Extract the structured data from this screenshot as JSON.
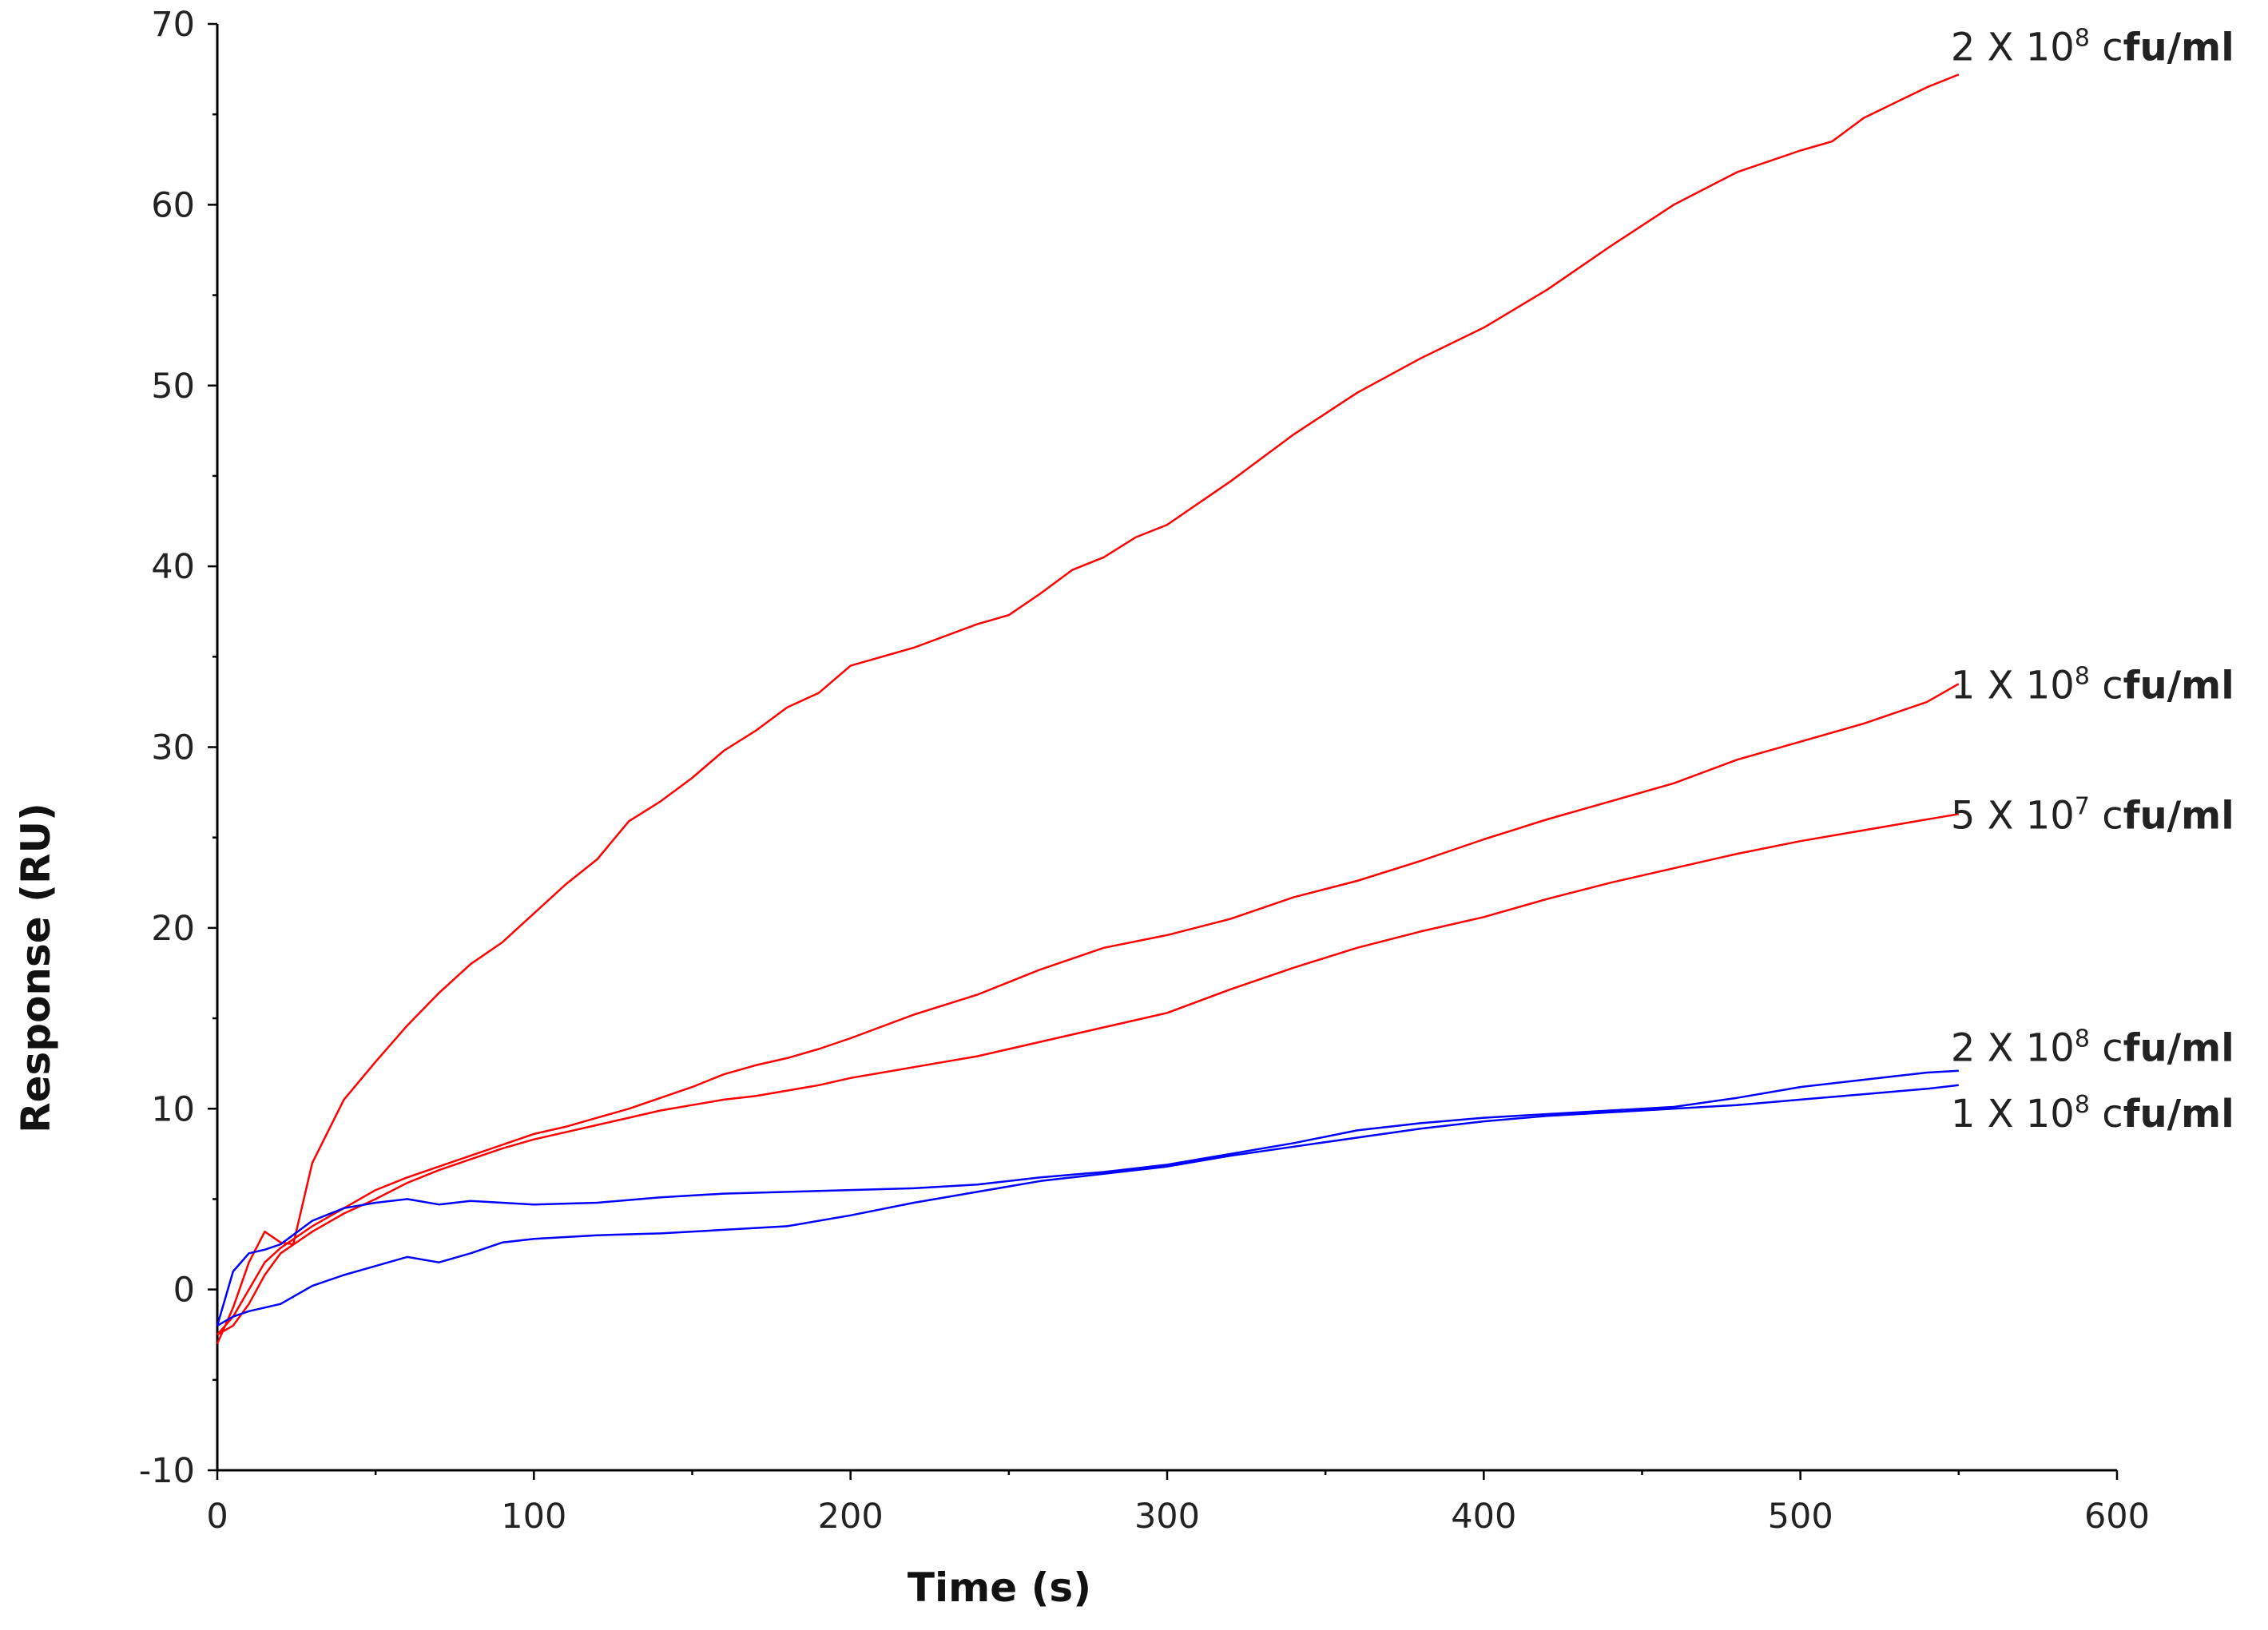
{
  "chart_data": {
    "type": "line",
    "title": "",
    "xlabel": "Time (s)",
    "ylabel": "Response (RU)",
    "xlim": [
      0,
      600
    ],
    "ylim": [
      -10,
      70
    ],
    "x_ticks": [
      "0",
      "100",
      "200",
      "300",
      "400",
      "500",
      "600"
    ],
    "y_ticks": [
      "-10",
      "0",
      "10",
      "20",
      "30",
      "40",
      "50",
      "60",
      "70"
    ],
    "grid": false,
    "legend": "none",
    "series": [
      {
        "label_parts": {
          "lead": "2 X 10",
          "exp": "8",
          "c": " c",
          "unit": "fu/ml"
        },
        "color": "#ff0000",
        "x": [
          0,
          5,
          10,
          15,
          20,
          24,
          30,
          40,
          50,
          60,
          70,
          80,
          90,
          100,
          110,
          120,
          130,
          140,
          150,
          160,
          170,
          180,
          190,
          200,
          220,
          240,
          250,
          260,
          270,
          280,
          290,
          300,
          320,
          340,
          360,
          380,
          400,
          420,
          440,
          460,
          480,
          500,
          510,
          520,
          540,
          550
        ],
        "y": [
          -3,
          -1,
          1.5,
          3.2,
          2.6,
          2.5,
          7,
          10.5,
          12.6,
          14.6,
          16.4,
          18,
          19.2,
          20.8,
          22.4,
          23.8,
          25.9,
          27,
          28.3,
          29.8,
          30.9,
          32.2,
          33,
          34.5,
          35.5,
          36.8,
          37.3,
          38.5,
          39.8,
          40.5,
          41.6,
          42.3,
          44.7,
          47.3,
          49.6,
          51.5,
          53.2,
          55.3,
          57.7,
          60,
          61.8,
          63,
          63.5,
          64.8,
          66.5,
          67.2
        ]
      },
      {
        "label_parts": {
          "lead": "1 X 10",
          "exp": "8",
          "c": " c",
          "unit": "fu/ml"
        },
        "color": "#ff0000",
        "x": [
          0,
          5,
          10,
          15,
          20,
          30,
          40,
          50,
          60,
          70,
          80,
          90,
          100,
          110,
          120,
          130,
          140,
          150,
          160,
          170,
          180,
          190,
          200,
          220,
          240,
          260,
          280,
          300,
          320,
          340,
          360,
          380,
          400,
          420,
          440,
          460,
          480,
          500,
          520,
          540,
          550
        ],
        "y": [
          -2.5,
          -1.5,
          0,
          1.5,
          2.3,
          3.5,
          4.5,
          5.5,
          6.2,
          6.8,
          7.4,
          8,
          8.6,
          9,
          9.5,
          10,
          10.6,
          11.2,
          11.9,
          12.4,
          12.8,
          13.3,
          13.9,
          15.2,
          16.3,
          17.7,
          18.9,
          19.6,
          20.5,
          21.7,
          22.6,
          23.7,
          24.9,
          26,
          27,
          28,
          29.3,
          30.3,
          31.3,
          32.5,
          33.5
        ]
      },
      {
        "label_parts": {
          "lead": "5 X 10",
          "exp": "7",
          "c": " c",
          "unit": "fu/ml"
        },
        "color": "#ff0000",
        "x": [
          0,
          5,
          10,
          15,
          20,
          30,
          40,
          50,
          60,
          70,
          80,
          90,
          100,
          110,
          120,
          130,
          140,
          150,
          160,
          170,
          180,
          190,
          200,
          220,
          240,
          260,
          280,
          300,
          320,
          340,
          360,
          380,
          400,
          420,
          440,
          460,
          480,
          500,
          520,
          540,
          550
        ],
        "y": [
          -2.5,
          -2,
          -0.8,
          0.8,
          2,
          3.2,
          4.2,
          5,
          5.9,
          6.6,
          7.2,
          7.8,
          8.3,
          8.7,
          9.1,
          9.5,
          9.9,
          10.2,
          10.5,
          10.7,
          11,
          11.3,
          11.7,
          12.3,
          12.9,
          13.7,
          14.5,
          15.3,
          16.6,
          17.8,
          18.9,
          19.8,
          20.6,
          21.6,
          22.5,
          23.3,
          24.1,
          24.8,
          25.4,
          26,
          26.3
        ]
      },
      {
        "label_parts": {
          "lead": "2 X 10",
          "exp": "8",
          "c": " c",
          "unit": "fu/ml"
        },
        "color": "#0000ff",
        "x": [
          0,
          5,
          10,
          15,
          20,
          30,
          40,
          50,
          60,
          70,
          80,
          90,
          100,
          120,
          140,
          160,
          180,
          200,
          220,
          240,
          260,
          280,
          300,
          320,
          340,
          360,
          380,
          400,
          420,
          440,
          460,
          480,
          500,
          520,
          540,
          550
        ],
        "y": [
          -2,
          1,
          2,
          2.2,
          2.5,
          3.8,
          4.5,
          4.8,
          5,
          4.7,
          4.9,
          4.8,
          4.7,
          4.8,
          5.1,
          5.3,
          5.4,
          5.5,
          5.6,
          5.8,
          6.2,
          6.5,
          6.9,
          7.5,
          8.1,
          8.8,
          9.2,
          9.5,
          9.7,
          9.9,
          10.1,
          10.6,
          11.2,
          11.6,
          12,
          12.1
        ]
      },
      {
        "label_parts": {
          "lead": "1 X 10",
          "exp": "8",
          "c": " c",
          "unit": "fu/ml"
        },
        "color": "#0000ff",
        "x": [
          0,
          5,
          10,
          15,
          20,
          30,
          40,
          50,
          60,
          70,
          80,
          90,
          100,
          120,
          140,
          160,
          180,
          200,
          220,
          240,
          260,
          280,
          300,
          320,
          340,
          360,
          380,
          400,
          420,
          440,
          460,
          480,
          500,
          520,
          540,
          550
        ],
        "y": [
          -2,
          -1.5,
          -1.2,
          -1,
          -0.8,
          0.2,
          0.8,
          1.3,
          1.8,
          1.5,
          2,
          2.6,
          2.8,
          3,
          3.1,
          3.3,
          3.5,
          4.1,
          4.8,
          5.4,
          6,
          6.4,
          6.8,
          7.4,
          7.9,
          8.4,
          8.9,
          9.3,
          9.6,
          9.8,
          10,
          10.2,
          10.5,
          10.8,
          11.1,
          11.3
        ]
      }
    ]
  }
}
